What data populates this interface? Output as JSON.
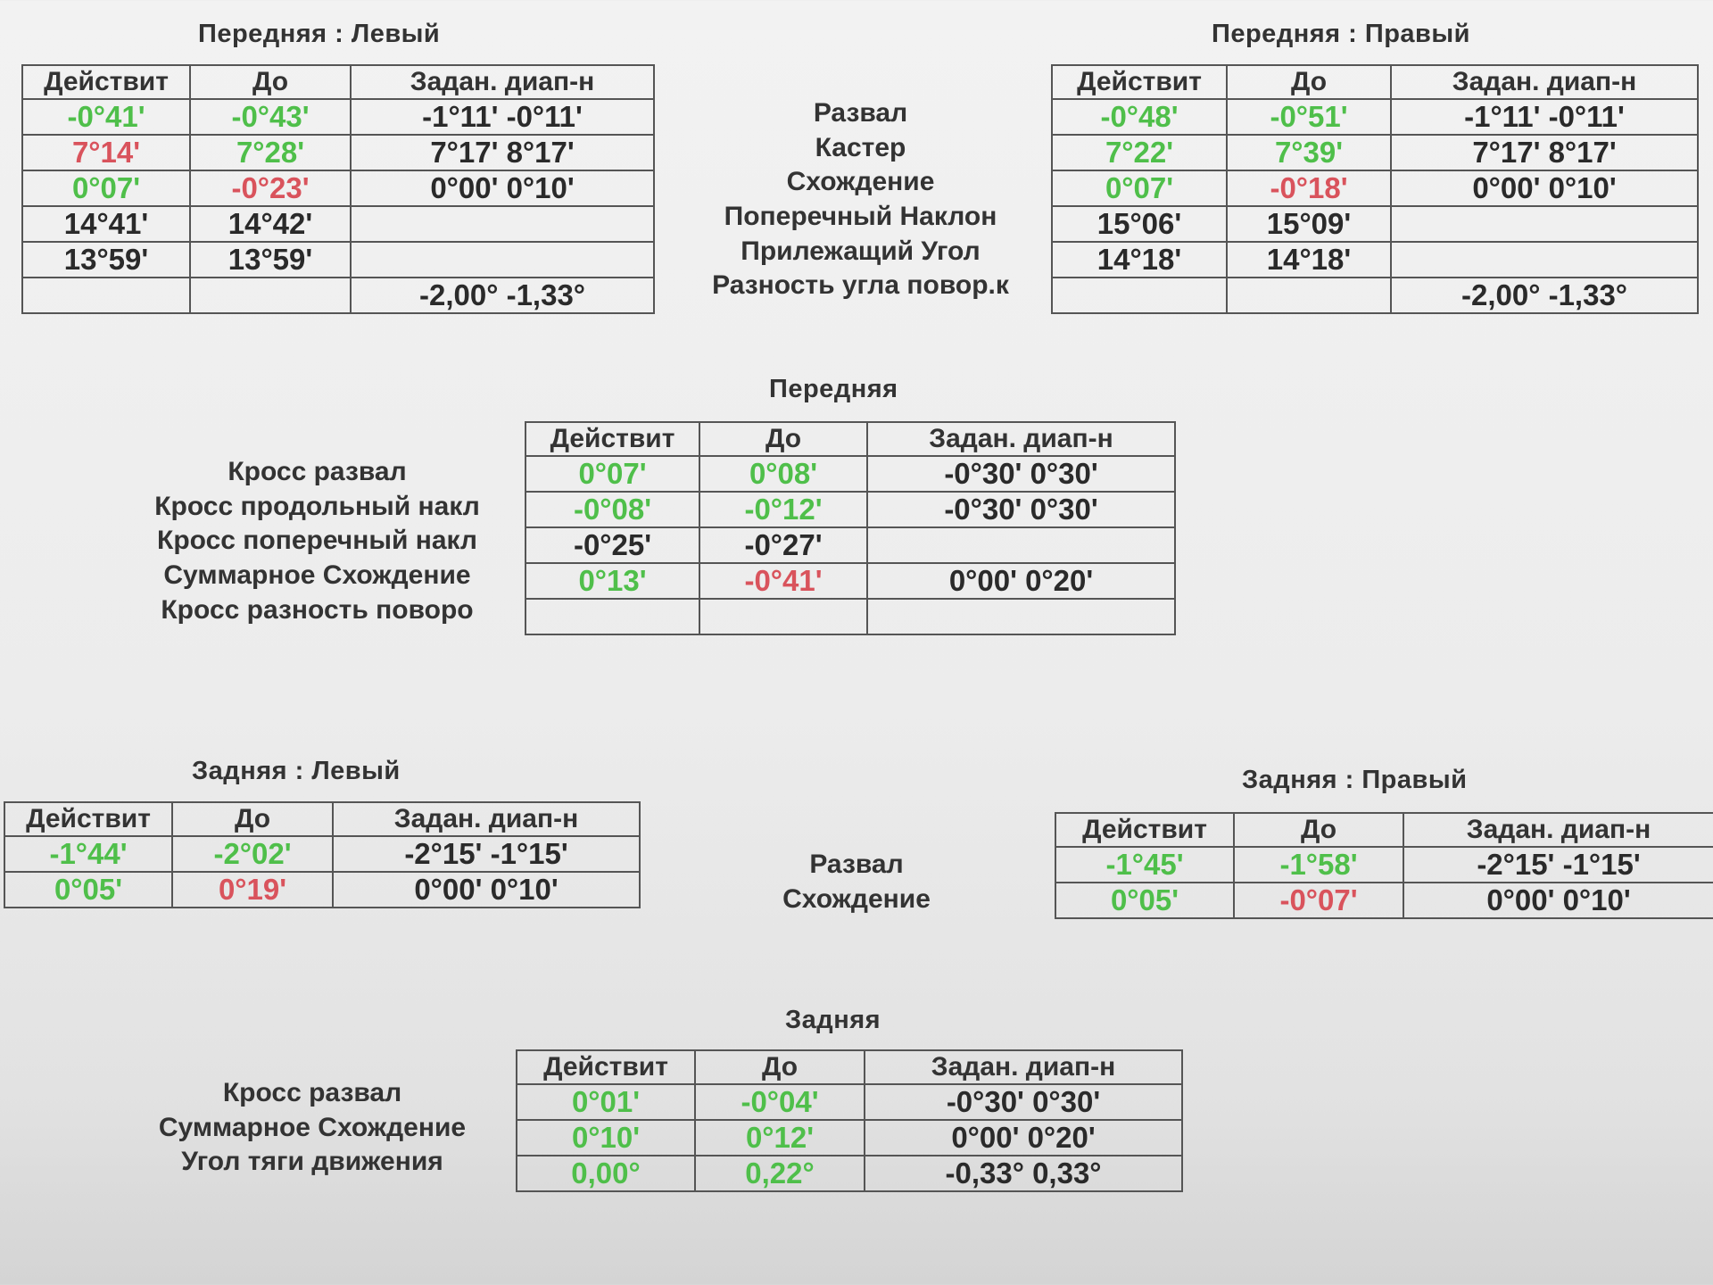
{
  "columns": [
    "Действит",
    "До",
    "Задан. диап-н"
  ],
  "front_left": {
    "title": "Передняя : Левый",
    "rows": [
      {
        "actual": "-0°41'",
        "actual_c": "g",
        "before": "-0°43'",
        "before_c": "g",
        "range": "-1°11' -0°11'"
      },
      {
        "actual": "7°14'",
        "actual_c": "r",
        "before": "7°28'",
        "before_c": "g",
        "range": "7°17' 8°17'"
      },
      {
        "actual": "0°07'",
        "actual_c": "g",
        "before": "-0°23'",
        "before_c": "r",
        "range": "0°00' 0°10'"
      },
      {
        "actual": "14°41'",
        "actual_c": "k",
        "before": "14°42'",
        "before_c": "k",
        "range": ""
      },
      {
        "actual": "13°59'",
        "actual_c": "k",
        "before": "13°59'",
        "before_c": "k",
        "range": ""
      },
      {
        "actual": "",
        "actual_c": "k",
        "before": "",
        "before_c": "k",
        "range": "-2,00° -1,33°"
      }
    ]
  },
  "front_right": {
    "title": "Передняя : Правый",
    "rows": [
      {
        "actual": "-0°48'",
        "actual_c": "g",
        "before": "-0°51'",
        "before_c": "g",
        "range": "-1°11' -0°11'"
      },
      {
        "actual": "7°22'",
        "actual_c": "g",
        "before": "7°39'",
        "before_c": "g",
        "range": "7°17' 8°17'"
      },
      {
        "actual": "0°07'",
        "actual_c": "g",
        "before": "-0°18'",
        "before_c": "r",
        "range": "0°00' 0°10'"
      },
      {
        "actual": "15°06'",
        "actual_c": "k",
        "before": "15°09'",
        "before_c": "k",
        "range": ""
      },
      {
        "actual": "14°18'",
        "actual_c": "k",
        "before": "14°18'",
        "before_c": "k",
        "range": ""
      },
      {
        "actual": "",
        "actual_c": "k",
        "before": "",
        "before_c": "k",
        "range": "-2,00° -1,33°"
      }
    ]
  },
  "front_labels": [
    "Развал",
    "Кастер",
    "Схождение",
    "Поперечный Наклон",
    "Прилежащий Угол",
    "Разность угла повор.к"
  ],
  "front_axle": {
    "title": "Передняя",
    "labels": [
      "Кросс развал",
      "Кросс продольный накл",
      "Кросс поперечный накл",
      "Суммарное Схождение",
      "Кросс разность поворо"
    ],
    "rows": [
      {
        "actual": "0°07'",
        "actual_c": "g",
        "before": "0°08'",
        "before_c": "g",
        "range": "-0°30' 0°30'"
      },
      {
        "actual": "-0°08'",
        "actual_c": "g",
        "before": "-0°12'",
        "before_c": "g",
        "range": "-0°30' 0°30'"
      },
      {
        "actual": "-0°25'",
        "actual_c": "k",
        "before": "-0°27'",
        "before_c": "k",
        "range": ""
      },
      {
        "actual": "0°13'",
        "actual_c": "g",
        "before": "-0°41'",
        "before_c": "r",
        "range": "0°00' 0°20'"
      },
      {
        "actual": "",
        "actual_c": "k",
        "before": "",
        "before_c": "k",
        "range": ""
      }
    ]
  },
  "rear_left": {
    "title": "Задняя : Левый",
    "rows": [
      {
        "actual": "-1°44'",
        "actual_c": "g",
        "before": "-2°02'",
        "before_c": "g",
        "range": "-2°15' -1°15'"
      },
      {
        "actual": "0°05'",
        "actual_c": "g",
        "before": "0°19'",
        "before_c": "r",
        "range": "0°00' 0°10'"
      }
    ]
  },
  "rear_right": {
    "title": "Задняя : Правый",
    "rows": [
      {
        "actual": "-1°45'",
        "actual_c": "g",
        "before": "-1°58'",
        "before_c": "g",
        "range": "-2°15' -1°15'"
      },
      {
        "actual": "0°05'",
        "actual_c": "g",
        "before": "-0°07'",
        "before_c": "r",
        "range": "0°00' 0°10'"
      }
    ]
  },
  "rear_labels": [
    "Развал",
    "Схождение"
  ],
  "rear_axle": {
    "title": "Задняя",
    "labels": [
      "Кросс развал",
      "Суммарное Схождение",
      "Угол тяги движения"
    ],
    "rows": [
      {
        "actual": "0°01'",
        "actual_c": "g",
        "before": "-0°04'",
        "before_c": "g",
        "range": "-0°30' 0°30'"
      },
      {
        "actual": "0°10'",
        "actual_c": "g",
        "before": "0°12'",
        "before_c": "g",
        "range": "0°00' 0°20'"
      },
      {
        "actual": "0,00°",
        "actual_c": "g",
        "before": "0,22°",
        "before_c": "g",
        "range": "-0,33° 0,33°"
      }
    ]
  }
}
